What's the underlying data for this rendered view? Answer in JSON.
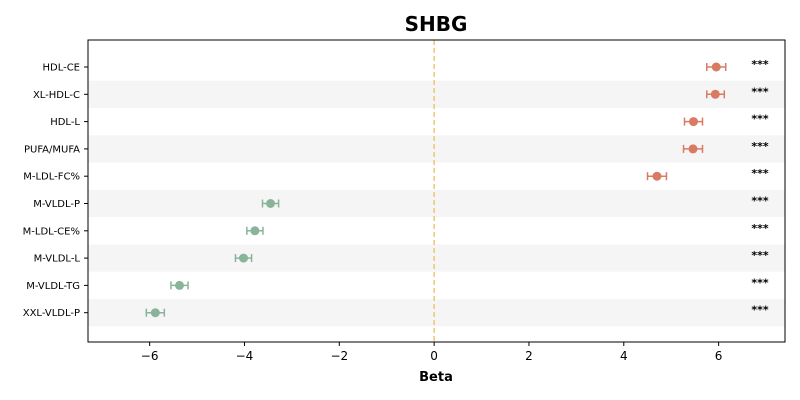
{
  "chart_data": {
    "type": "scatter",
    "title": "SHBG",
    "xlabel": "Beta",
    "ylabel": "",
    "xlim": [
      -7.3,
      7.4
    ],
    "xticks": [
      -6,
      -4,
      -2,
      0,
      2,
      4,
      6
    ],
    "xtick_labels": [
      "−6",
      "−4",
      "−2",
      "0",
      "2",
      "4",
      "6"
    ],
    "reference_line_x": 0,
    "significance_marker": "***",
    "colors": {
      "positive": "#d97b63",
      "negative": "#8ab49a",
      "reference_line": "#f0c27b",
      "band": "#f5f5f5"
    },
    "items": [
      {
        "label": "HDL-CE",
        "beta": 5.95,
        "ci_low": 5.75,
        "ci_high": 6.15,
        "sig": "***"
      },
      {
        "label": "XL-HDL-C",
        "beta": 5.93,
        "ci_low": 5.75,
        "ci_high": 6.12,
        "sig": "***"
      },
      {
        "label": "HDL-L",
        "beta": 5.47,
        "ci_low": 5.28,
        "ci_high": 5.66,
        "sig": "***"
      },
      {
        "label": "PUFA/MUFA",
        "beta": 5.46,
        "ci_low": 5.26,
        "ci_high": 5.66,
        "sig": "***"
      },
      {
        "label": "M-LDL-FC%",
        "beta": 4.7,
        "ci_low": 4.5,
        "ci_high": 4.9,
        "sig": "***"
      },
      {
        "label": "M-VLDL-P",
        "beta": -3.45,
        "ci_low": -3.62,
        "ci_high": -3.28,
        "sig": "***"
      },
      {
        "label": "M-LDL-CE%",
        "beta": -3.78,
        "ci_low": -3.95,
        "ci_high": -3.61,
        "sig": "***"
      },
      {
        "label": "M-VLDL-L",
        "beta": -4.02,
        "ci_low": -4.19,
        "ci_high": -3.85,
        "sig": "***"
      },
      {
        "label": "M-VLDL-TG",
        "beta": -5.37,
        "ci_low": -5.55,
        "ci_high": -5.19,
        "sig": "***"
      },
      {
        "label": "XXL-VLDL-P",
        "beta": -5.88,
        "ci_low": -6.07,
        "ci_high": -5.69,
        "sig": "***"
      }
    ]
  }
}
